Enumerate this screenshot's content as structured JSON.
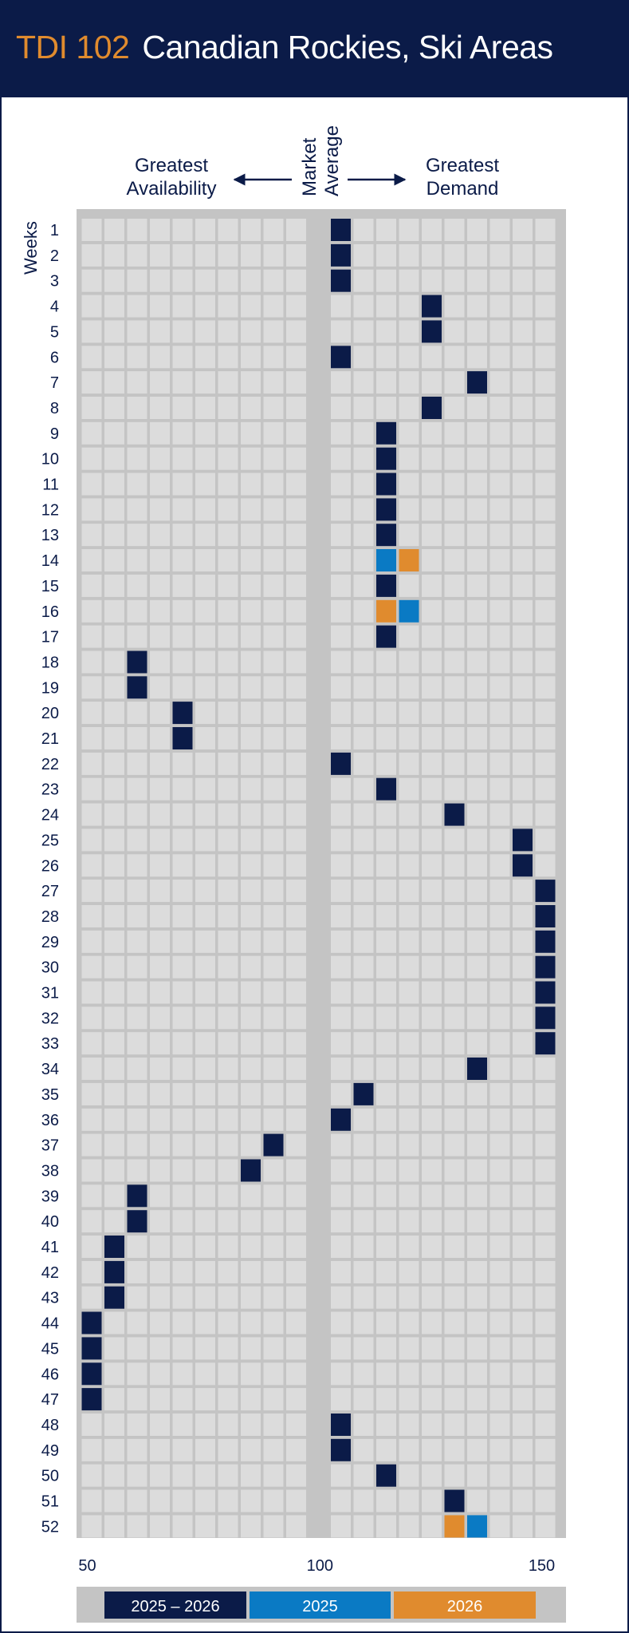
{
  "header": {
    "code": "TDI 102",
    "name": "Canadian Rockies, Ski Areas"
  },
  "labels": {
    "left": [
      "Greatest",
      "Availability"
    ],
    "center": [
      "Market",
      "Average"
    ],
    "right": [
      "Greatest",
      "Demand"
    ],
    "weeks": "Weeks"
  },
  "colors": {
    "header_bg": "#0b1b48",
    "accent": "#e08b2e",
    "both": "#0b1b48",
    "y2025": "#0a7ac4",
    "y2026": "#e08b2e",
    "empty_cell": "#dcdcdc",
    "panel": "#c4c4c4"
  },
  "chart_data": {
    "type": "heatmap",
    "title": "",
    "x_range": [
      50,
      150
    ],
    "x_tick_labels": [
      "50",
      "100",
      "150"
    ],
    "x_step": 5,
    "market_average": 100,
    "y_categories": [
      "1",
      "2",
      "3",
      "4",
      "5",
      "6",
      "7",
      "8",
      "9",
      "10",
      "11",
      "12",
      "13",
      "14",
      "15",
      "16",
      "17",
      "18",
      "19",
      "20",
      "21",
      "22",
      "23",
      "24",
      "25",
      "26",
      "27",
      "28",
      "29",
      "30",
      "31",
      "32",
      "33",
      "34",
      "35",
      "36",
      "37",
      "38",
      "39",
      "40",
      "41",
      "42",
      "43",
      "44",
      "45",
      "46",
      "47",
      "48",
      "49",
      "50",
      "51",
      "52"
    ],
    "legend": [
      {
        "key": "both",
        "label": "2025 – 2026"
      },
      {
        "key": "y2025",
        "label": "2025"
      },
      {
        "key": "y2026",
        "label": "2026"
      }
    ],
    "points": [
      {
        "week": 1,
        "value": 105,
        "series": "both"
      },
      {
        "week": 2,
        "value": 105,
        "series": "both"
      },
      {
        "week": 3,
        "value": 105,
        "series": "both"
      },
      {
        "week": 4,
        "value": 125,
        "series": "both"
      },
      {
        "week": 5,
        "value": 125,
        "series": "both"
      },
      {
        "week": 6,
        "value": 105,
        "series": "both"
      },
      {
        "week": 7,
        "value": 135,
        "series": "both"
      },
      {
        "week": 8,
        "value": 125,
        "series": "both"
      },
      {
        "week": 9,
        "value": 115,
        "series": "both"
      },
      {
        "week": 10,
        "value": 115,
        "series": "both"
      },
      {
        "week": 11,
        "value": 115,
        "series": "both"
      },
      {
        "week": 12,
        "value": 115,
        "series": "both"
      },
      {
        "week": 13,
        "value": 115,
        "series": "both"
      },
      {
        "week": 14,
        "value": 115,
        "series": "y2025"
      },
      {
        "week": 14,
        "value": 120,
        "series": "y2026"
      },
      {
        "week": 15,
        "value": 115,
        "series": "both"
      },
      {
        "week": 16,
        "value": 115,
        "series": "y2026"
      },
      {
        "week": 16,
        "value": 120,
        "series": "y2025"
      },
      {
        "week": 17,
        "value": 115,
        "series": "both"
      },
      {
        "week": 18,
        "value": 60,
        "series": "both"
      },
      {
        "week": 19,
        "value": 60,
        "series": "both"
      },
      {
        "week": 20,
        "value": 70,
        "series": "both"
      },
      {
        "week": 21,
        "value": 70,
        "series": "both"
      },
      {
        "week": 22,
        "value": 105,
        "series": "both"
      },
      {
        "week": 23,
        "value": 115,
        "series": "both"
      },
      {
        "week": 24,
        "value": 130,
        "series": "both"
      },
      {
        "week": 25,
        "value": 145,
        "series": "both"
      },
      {
        "week": 26,
        "value": 145,
        "series": "both"
      },
      {
        "week": 27,
        "value": 150,
        "series": "both"
      },
      {
        "week": 28,
        "value": 150,
        "series": "both"
      },
      {
        "week": 29,
        "value": 150,
        "series": "both"
      },
      {
        "week": 30,
        "value": 150,
        "series": "both"
      },
      {
        "week": 31,
        "value": 150,
        "series": "both"
      },
      {
        "week": 32,
        "value": 150,
        "series": "both"
      },
      {
        "week": 33,
        "value": 150,
        "series": "both"
      },
      {
        "week": 34,
        "value": 135,
        "series": "both"
      },
      {
        "week": 35,
        "value": 110,
        "series": "both"
      },
      {
        "week": 36,
        "value": 105,
        "series": "both"
      },
      {
        "week": 37,
        "value": 90,
        "series": "both"
      },
      {
        "week": 38,
        "value": 85,
        "series": "both"
      },
      {
        "week": 39,
        "value": 60,
        "series": "both"
      },
      {
        "week": 40,
        "value": 60,
        "series": "both"
      },
      {
        "week": 41,
        "value": 55,
        "series": "both"
      },
      {
        "week": 42,
        "value": 55,
        "series": "both"
      },
      {
        "week": 43,
        "value": 55,
        "series": "both"
      },
      {
        "week": 44,
        "value": 50,
        "series": "both"
      },
      {
        "week": 45,
        "value": 50,
        "series": "both"
      },
      {
        "week": 46,
        "value": 50,
        "series": "both"
      },
      {
        "week": 47,
        "value": 50,
        "series": "both"
      },
      {
        "week": 48,
        "value": 105,
        "series": "both"
      },
      {
        "week": 49,
        "value": 105,
        "series": "both"
      },
      {
        "week": 50,
        "value": 115,
        "series": "both"
      },
      {
        "week": 51,
        "value": 130,
        "series": "both"
      },
      {
        "week": 52,
        "value": 130,
        "series": "y2026"
      },
      {
        "week": 52,
        "value": 135,
        "series": "y2025"
      }
    ]
  }
}
